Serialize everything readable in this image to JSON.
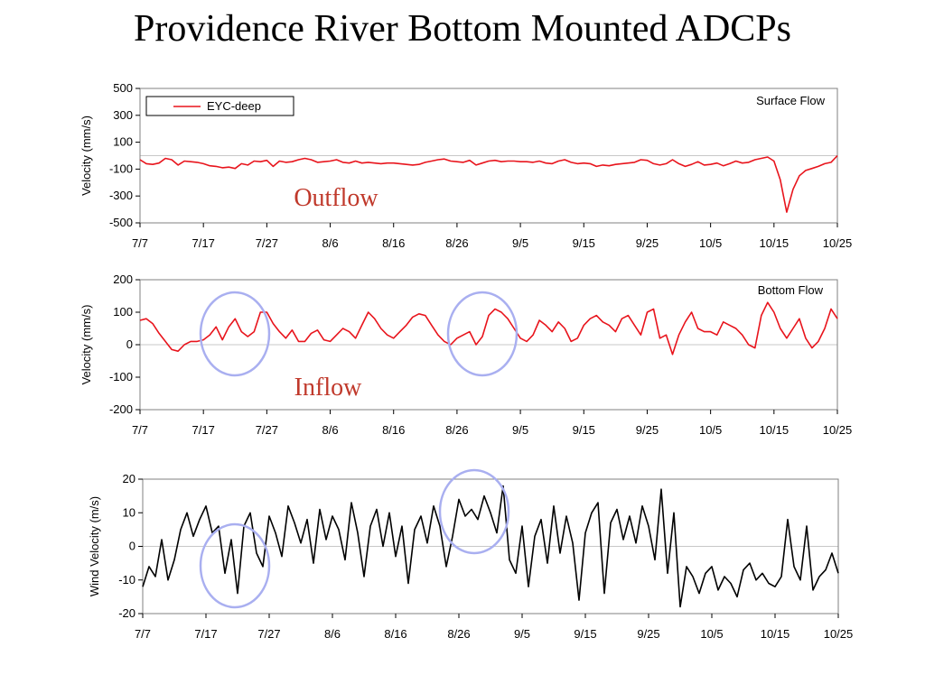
{
  "page": {
    "title": "Providence River Bottom Mounted ADCPs"
  },
  "chart_data": [
    {
      "type": "line",
      "panel": "surface",
      "title": "",
      "ylabel": "Velocity (mm/s)",
      "xlabel": "",
      "ylim": [
        -500,
        500
      ],
      "yticks": [
        "500",
        "300",
        "100",
        "-100",
        "-300",
        "-500"
      ],
      "ytick_values": [
        500,
        300,
        100,
        -100,
        -300,
        -500
      ],
      "xticks": [
        "7/7",
        "7/17",
        "7/27",
        "8/6",
        "8/16",
        "8/26",
        "9/5",
        "9/15",
        "9/25",
        "10/5",
        "10/15",
        "10/25"
      ],
      "xlim_days": [
        0,
        110
      ],
      "grid": "zero-line",
      "note": "Surface Flow",
      "legend": {
        "position": "top-left",
        "entries": [
          "EYC-deep"
        ]
      },
      "annotation": "Outflow",
      "series": [
        {
          "name": "EYC-deep",
          "color": "#e8141c",
          "x": [
            0,
            1,
            2,
            3,
            4,
            5,
            6,
            7,
            8,
            9,
            10,
            11,
            12,
            13,
            14,
            15,
            16,
            17,
            18,
            19,
            20,
            21,
            22,
            23,
            24,
            25,
            26,
            27,
            28,
            29,
            30,
            31,
            32,
            33,
            34,
            35,
            36,
            37,
            38,
            39,
            40,
            41,
            42,
            43,
            44,
            45,
            46,
            47,
            48,
            49,
            50,
            51,
            52,
            53,
            54,
            55,
            56,
            57,
            58,
            59,
            60,
            61,
            62,
            63,
            64,
            65,
            66,
            67,
            68,
            69,
            70,
            71,
            72,
            73,
            74,
            75,
            76,
            77,
            78,
            79,
            80,
            81,
            82,
            83,
            84,
            85,
            86,
            87,
            88,
            89,
            90,
            91,
            92,
            93,
            94,
            95,
            96,
            97,
            98,
            99,
            100,
            101,
            102,
            103,
            104,
            105,
            106,
            107,
            108,
            109,
            110
          ],
          "values": [
            -30,
            -60,
            -65,
            -55,
            -20,
            -30,
            -70,
            -40,
            -45,
            -50,
            -60,
            -75,
            -80,
            -90,
            -85,
            -95,
            -60,
            -70,
            -40,
            -45,
            -35,
            -80,
            -40,
            -50,
            -45,
            -30,
            -20,
            -30,
            -50,
            -45,
            -40,
            -30,
            -50,
            -55,
            -40,
            -55,
            -50,
            -55,
            -60,
            -55,
            -55,
            -60,
            -65,
            -70,
            -65,
            -50,
            -40,
            -30,
            -25,
            -40,
            -45,
            -50,
            -35,
            -70,
            -55,
            -40,
            -35,
            -45,
            -40,
            -40,
            -45,
            -45,
            -50,
            -40,
            -55,
            -60,
            -40,
            -30,
            -50,
            -60,
            -55,
            -60,
            -80,
            -70,
            -75,
            -65,
            -60,
            -55,
            -50,
            -30,
            -35,
            -60,
            -70,
            -60,
            -30,
            -60,
            -80,
            -65,
            -45,
            -70,
            -65,
            -55,
            -75,
            -60,
            -40,
            -55,
            -50,
            -30,
            -20,
            -10,
            -40,
            -180,
            -420,
            -250,
            -150,
            -110,
            -95,
            -80,
            -60,
            -50,
            0
          ]
        }
      ]
    },
    {
      "type": "line",
      "panel": "bottom",
      "title": "",
      "ylabel": "Velocity (mm/s)",
      "xlabel": "",
      "ylim": [
        -200,
        200
      ],
      "yticks": [
        "200",
        "100",
        "0",
        "-100",
        "-200"
      ],
      "ytick_values": [
        200,
        100,
        0,
        -100,
        -200
      ],
      "xticks": [
        "7/7",
        "7/17",
        "7/27",
        "8/6",
        "8/16",
        "8/26",
        "9/5",
        "9/15",
        "9/25",
        "10/5",
        "10/15",
        "10/25"
      ],
      "xlim_days": [
        0,
        110
      ],
      "grid": "zero-line",
      "note": "Bottom Flow",
      "annotation": "Inflow",
      "series": [
        {
          "name": "",
          "color": "#e8141c",
          "x": [
            0,
            1,
            2,
            3,
            4,
            5,
            6,
            7,
            8,
            9,
            10,
            11,
            12,
            13,
            14,
            15,
            16,
            17,
            18,
            19,
            20,
            21,
            22,
            23,
            24,
            25,
            26,
            27,
            28,
            29,
            30,
            31,
            32,
            33,
            34,
            35,
            36,
            37,
            38,
            39,
            40,
            41,
            42,
            43,
            44,
            45,
            46,
            47,
            48,
            49,
            50,
            51,
            52,
            53,
            54,
            55,
            56,
            57,
            58,
            59,
            60,
            61,
            62,
            63,
            64,
            65,
            66,
            67,
            68,
            69,
            70,
            71,
            72,
            73,
            74,
            75,
            76,
            77,
            78,
            79,
            80,
            81,
            82,
            83,
            84,
            85,
            86,
            87,
            88,
            89,
            90,
            91,
            92,
            93,
            94,
            95,
            96,
            97,
            98,
            99,
            100,
            101,
            102,
            103,
            104,
            105,
            106,
            107,
            108,
            109,
            110
          ],
          "values": [
            75,
            80,
            65,
            35,
            10,
            -15,
            -20,
            0,
            10,
            10,
            15,
            30,
            55,
            15,
            55,
            80,
            40,
            25,
            40,
            100,
            100,
            65,
            40,
            20,
            45,
            10,
            10,
            35,
            45,
            15,
            10,
            30,
            50,
            40,
            20,
            60,
            100,
            80,
            50,
            30,
            20,
            40,
            60,
            85,
            95,
            90,
            60,
            30,
            10,
            0,
            20,
            30,
            40,
            0,
            25,
            90,
            110,
            100,
            80,
            50,
            20,
            10,
            30,
            75,
            60,
            40,
            70,
            50,
            10,
            20,
            60,
            80,
            90,
            70,
            60,
            40,
            80,
            90,
            60,
            30,
            100,
            110,
            20,
            30,
            -30,
            30,
            70,
            100,
            50,
            40,
            40,
            30,
            70,
            60,
            50,
            30,
            0,
            -10,
            90,
            130,
            100,
            50,
            20,
            50,
            80,
            20,
            -10,
            10,
            50,
            110,
            80
          ]
        }
      ]
    },
    {
      "type": "line",
      "panel": "wind",
      "title": "",
      "ylabel": "Wind Velocity (m/s)",
      "xlabel": "",
      "ylim": [
        -20,
        20
      ],
      "yticks": [
        "20",
        "10",
        "0",
        "-10",
        "-20"
      ],
      "ytick_values": [
        20,
        10,
        0,
        -10,
        -20
      ],
      "xticks": [
        "7/7",
        "7/17",
        "7/27",
        "8/6",
        "8/16",
        "8/26",
        "9/5",
        "9/15",
        "9/25",
        "10/5",
        "10/15",
        "10/25"
      ],
      "xlim_days": [
        0,
        110
      ],
      "grid": "zero-line",
      "series": [
        {
          "name": "",
          "color": "#000000",
          "x": [
            0,
            1,
            2,
            3,
            4,
            5,
            6,
            7,
            8,
            9,
            10,
            11,
            12,
            13,
            14,
            15,
            16,
            17,
            18,
            19,
            20,
            21,
            22,
            23,
            24,
            25,
            26,
            27,
            28,
            29,
            30,
            31,
            32,
            33,
            34,
            35,
            36,
            37,
            38,
            39,
            40,
            41,
            42,
            43,
            44,
            45,
            46,
            47,
            48,
            49,
            50,
            51,
            52,
            53,
            54,
            55,
            56,
            57,
            58,
            59,
            60,
            61,
            62,
            63,
            64,
            65,
            66,
            67,
            68,
            69,
            70,
            71,
            72,
            73,
            74,
            75,
            76,
            77,
            78,
            79,
            80,
            81,
            82,
            83,
            84,
            85,
            86,
            87,
            88,
            89,
            90,
            91,
            92,
            93,
            94,
            95,
            96,
            97,
            98,
            99,
            100,
            101,
            102,
            103,
            104,
            105,
            106,
            107,
            108,
            109,
            110
          ],
          "values": [
            -12,
            -6,
            -9,
            2,
            -10,
            -4,
            5,
            10,
            3,
            8,
            12,
            4,
            6,
            -8,
            2,
            -14,
            6,
            10,
            -2,
            -6,
            9,
            4,
            -3,
            12,
            7,
            1,
            8,
            -5,
            11,
            2,
            9,
            5,
            -4,
            13,
            4,
            -9,
            6,
            11,
            0,
            10,
            -3,
            6,
            -11,
            5,
            9,
            1,
            12,
            6,
            -6,
            3,
            14,
            9,
            11,
            8,
            15,
            10,
            4,
            18,
            -4,
            -8,
            6,
            -12,
            3,
            8,
            -5,
            12,
            -2,
            9,
            1,
            -16,
            4,
            10,
            13,
            -14,
            7,
            11,
            2,
            9,
            1,
            12,
            6,
            -4,
            17,
            -8,
            10,
            -18,
            -6,
            -9,
            -14,
            -8,
            -6,
            -13,
            -9,
            -11,
            -15,
            -7,
            -5,
            -10,
            -8,
            -11,
            -12,
            -9,
            8,
            -6,
            -10,
            6,
            -13,
            -9,
            -7,
            -2,
            -8
          ]
        }
      ]
    }
  ]
}
